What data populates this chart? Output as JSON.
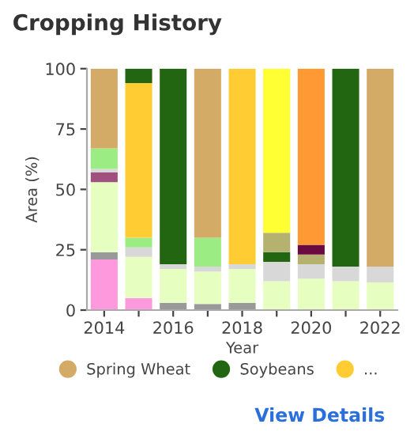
{
  "chart_data": {
    "type": "bar",
    "stacked": true,
    "title": "Cropping History",
    "xlabel": "Year",
    "ylabel": "Area (%)",
    "categories": [
      "2014",
      null,
      "2016",
      null,
      "2018",
      null,
      "2020",
      null,
      "2022"
    ],
    "ylim": [
      0,
      100
    ],
    "yticks": [
      0,
      25,
      50,
      75,
      100
    ],
    "grid": false,
    "legend": "bottom",
    "marker": "circle",
    "annotations": [
      "View Details"
    ],
    "series": [
      {
        "color": "#ff99dd",
        "values": [
          21,
          5,
          null,
          null,
          null,
          null,
          null,
          null,
          null
        ]
      },
      {
        "color": "#999999",
        "values": [
          3,
          null,
          3,
          2.5,
          3,
          null,
          null,
          null,
          null
        ]
      },
      {
        "color": "#e6ffc0",
        "values": [
          29,
          17,
          14,
          13.5,
          14,
          12,
          13,
          12,
          11.5
        ]
      },
      {
        "color": "#a0507f",
        "values": [
          4,
          null,
          null,
          null,
          null,
          null,
          null,
          null,
          null
        ]
      },
      {
        "color": "#d8d8d8",
        "values": [
          1.5,
          4,
          2,
          2,
          2,
          8,
          6,
          6,
          6.5
        ]
      },
      {
        "color": "#9cec84",
        "values": [
          8.5,
          4,
          null,
          12,
          null,
          null,
          null,
          null,
          null
        ]
      },
      {
        "name": "...",
        "color": "#ffcc33",
        "values": [
          null,
          64,
          null,
          null,
          81,
          null,
          null,
          null,
          null
        ]
      },
      {
        "name": "Soybeans",
        "color": "#226611",
        "values": [
          null,
          6,
          81,
          null,
          null,
          4,
          null,
          82,
          null
        ]
      },
      {
        "color": "#b5b26f",
        "values": [
          null,
          null,
          null,
          null,
          null,
          8,
          4,
          null,
          null
        ]
      },
      {
        "color": "#6b0a40",
        "values": [
          null,
          null,
          null,
          null,
          null,
          null,
          4,
          null,
          null
        ]
      },
      {
        "color": "#ffff33",
        "values": [
          null,
          null,
          null,
          null,
          null,
          68,
          null,
          null,
          null
        ]
      },
      {
        "color": "#ff9933",
        "values": [
          null,
          null,
          null,
          null,
          null,
          null,
          73,
          null,
          null
        ]
      },
      {
        "name": "Spring Wheat",
        "color": "#d4ab66",
        "values": [
          33,
          null,
          null,
          70,
          null,
          null,
          null,
          null,
          82
        ]
      }
    ]
  }
}
